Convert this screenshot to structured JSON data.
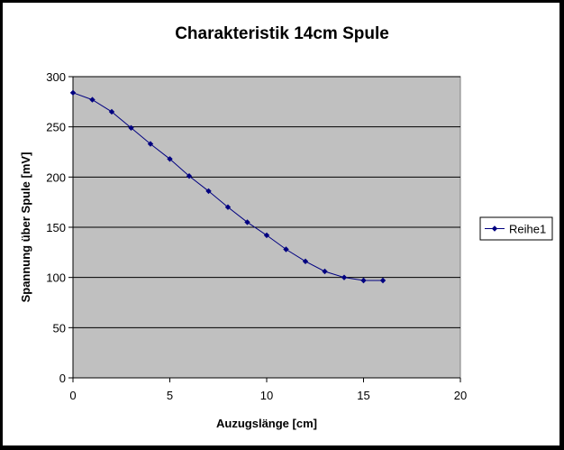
{
  "chart_data": {
    "type": "line",
    "title": "Charakteristik 14cm Spule",
    "xlabel": "Auzugslänge [cm]",
    "ylabel": "Spannung über Spule [mV]",
    "xlim": [
      0,
      20
    ],
    "ylim": [
      0,
      300
    ],
    "xticks": [
      0,
      5,
      10,
      15,
      20
    ],
    "yticks": [
      0,
      50,
      100,
      150,
      200,
      250,
      300
    ],
    "grid": "horizontal",
    "legend": "right",
    "plot_background": "#c0c0c0",
    "series": [
      {
        "name": "Reihe1",
        "color": "#000080",
        "marker": "diamond",
        "x": [
          0,
          1,
          2,
          3,
          4,
          5,
          6,
          7,
          8,
          9,
          10,
          11,
          12,
          13,
          14,
          15,
          16
        ],
        "y": [
          284,
          277,
          265,
          249,
          233,
          218,
          201,
          186,
          170,
          155,
          142,
          128,
          116,
          106,
          100,
          97,
          97
        ]
      }
    ]
  }
}
